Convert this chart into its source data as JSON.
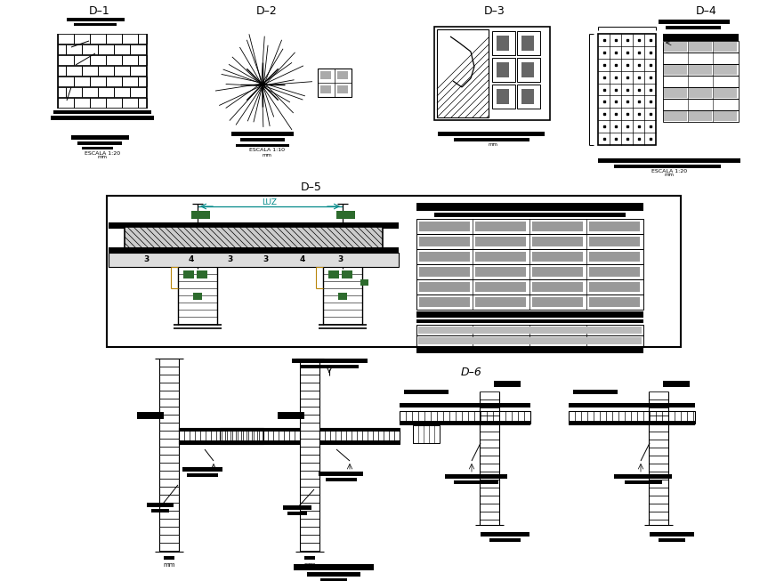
{
  "bg_color": "#ffffff",
  "line_color": "#000000",
  "green_color": "#2d6b2d",
  "cyan_color": "#008888",
  "gold_color": "#b8860b",
  "figsize": [
    8.81,
    6.53
  ],
  "dpi": 100,
  "labels": {
    "D1": "D–1",
    "D2": "D–2",
    "D3": "D–3",
    "D4": "D–4",
    "D5": "D–5",
    "D6": "D–6"
  }
}
